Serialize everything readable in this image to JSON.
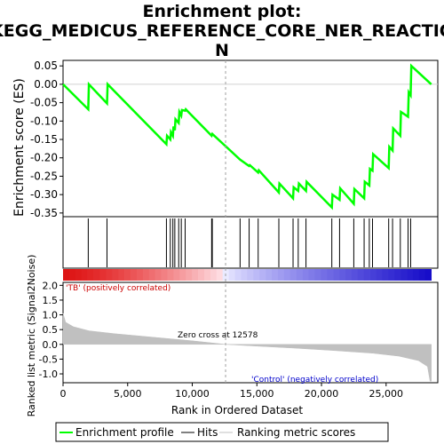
{
  "chart_data": {
    "type": "line",
    "title_lines": [
      "Enrichment plot:",
      "KEGG_MEDICUS_REFERENCE_CORE_NER_REACTIO",
      "N"
    ],
    "es_panel": {
      "ylabel": "Enrichment score (ES)",
      "ylim": [
        -0.36,
        0.065
      ],
      "yticks": [
        0.05,
        0.0,
        -0.05,
        -0.1,
        -0.15,
        -0.2,
        -0.25,
        -0.3,
        -0.35
      ],
      "ytick_labels": [
        "0.05",
        "0.00",
        "-0.05",
        "-0.10",
        "-0.15",
        "-0.20",
        "-0.25",
        "-0.30",
        "-0.35"
      ],
      "line_color": "#00ff00",
      "curve": {
        "x": [
          0,
          1950,
          2000,
          3400,
          3450,
          8000,
          8050,
          8300,
          8350,
          8500,
          8550,
          8650,
          8700,
          8950,
          9000,
          9150,
          9200,
          9450,
          9500,
          11500,
          11550,
          13700,
          14400,
          14450,
          15100,
          15150,
          16700,
          16750,
          17800,
          17850,
          18200,
          18250,
          18800,
          18850,
          20800,
          20850,
          21400,
          21450,
          22500,
          22550,
          23300,
          23350,
          23700,
          23750,
          23950,
          24000,
          25200,
          25250,
          25500,
          25550,
          26100,
          26150,
          26700,
          26750,
          26900,
          26950,
          28500
        ],
        "y": [
          0.0,
          -0.068,
          0.0,
          -0.052,
          0.0,
          -0.163,
          -0.14,
          -0.15,
          -0.13,
          -0.14,
          -0.115,
          -0.125,
          -0.095,
          -0.105,
          -0.075,
          -0.085,
          -0.07,
          -0.072,
          -0.068,
          -0.14,
          -0.135,
          -0.205,
          -0.222,
          -0.22,
          -0.24,
          -0.234,
          -0.294,
          -0.27,
          -0.31,
          -0.28,
          -0.29,
          -0.27,
          -0.29,
          -0.265,
          -0.335,
          -0.3,
          -0.314,
          -0.283,
          -0.325,
          -0.285,
          -0.31,
          -0.265,
          -0.275,
          -0.23,
          -0.235,
          -0.19,
          -0.228,
          -0.17,
          -0.18,
          -0.12,
          -0.14,
          -0.075,
          -0.088,
          -0.022,
          -0.03,
          0.05,
          0.0
        ]
      }
    },
    "hits": [
      1950,
      3400,
      8000,
      8300,
      8500,
      8650,
      8950,
      9150,
      9450,
      11500,
      11550,
      13700,
      14400,
      15100,
      16700,
      17800,
      18200,
      18800,
      20800,
      21400,
      22500,
      23300,
      23700,
      23950,
      25200,
      25500,
      26100,
      26700,
      26900
    ],
    "metric_panel": {
      "ylabel": "Ranked list metric (Signal2Noise)",
      "ylim": [
        -1.3,
        2.1
      ],
      "yticks": [
        2.0,
        1.5,
        1.0,
        0.5,
        0.0,
        -0.5,
        -1.0
      ],
      "ytick_labels": [
        "2.0",
        "1.5",
        "1.0",
        "0.5",
        "0.0",
        "-0.5",
        "-1.0"
      ],
      "profile": {
        "x": [
          0,
          200,
          800,
          2000,
          4000,
          7000,
          10000,
          12578,
          15000,
          18000,
          21000,
          24000,
          26000,
          27500,
          28200,
          28400,
          28500
        ],
        "y": [
          1.05,
          0.75,
          0.6,
          0.46,
          0.36,
          0.24,
          0.12,
          0.0,
          -0.06,
          -0.13,
          -0.21,
          -0.3,
          -0.4,
          -0.55,
          -0.75,
          -1.25,
          -1.25
        ]
      },
      "zero_cross_label": "Zero cross at 12578",
      "zero_cross": 12578,
      "positive_label": "'TB' (positively correlated)",
      "negative_label": "'Control' (negatively correlated)",
      "positive_color": "#cc0000",
      "negative_color": "#0000cc"
    },
    "xlabel": "Rank in Ordered Dataset",
    "xlim": [
      0,
      29000
    ],
    "xticks": [
      0,
      5000,
      10000,
      15000,
      20000,
      25000
    ],
    "xtick_labels": [
      "0",
      "5,000",
      "10,000",
      "15,000",
      "20,000",
      "25,000"
    ],
    "n_genes": 28500,
    "legend": [
      {
        "label": "Enrichment profile",
        "color": "#00ff00"
      },
      {
        "label": "Hits",
        "color": "#000000"
      },
      {
        "label": "Ranking metric scores",
        "color": "#c0c0c0"
      }
    ]
  }
}
